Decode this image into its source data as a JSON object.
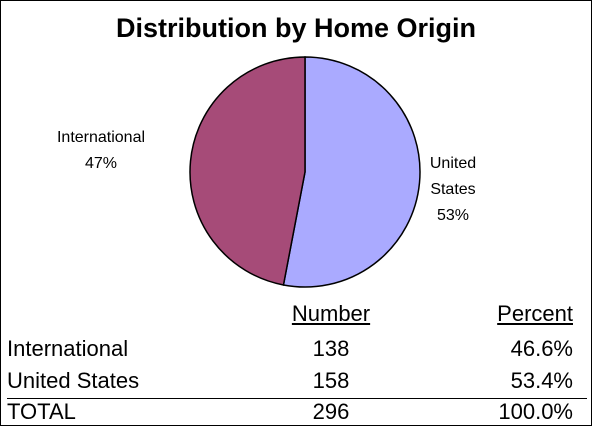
{
  "chart_data": {
    "type": "pie",
    "title": "Distribution by Home Origin",
    "categories": [
      "International",
      "United States"
    ],
    "values": [
      47,
      53
    ],
    "value_labels": [
      "47%",
      "53%"
    ],
    "colors": [
      "#a64b78",
      "#aaaaff"
    ]
  },
  "table": {
    "columns": [
      "Number",
      "Percent"
    ],
    "rows": [
      [
        "International",
        138,
        "46.6%"
      ],
      [
        "United States",
        158,
        "53.4%"
      ]
    ],
    "total": [
      "TOTAL",
      296,
      "100.0%"
    ]
  }
}
